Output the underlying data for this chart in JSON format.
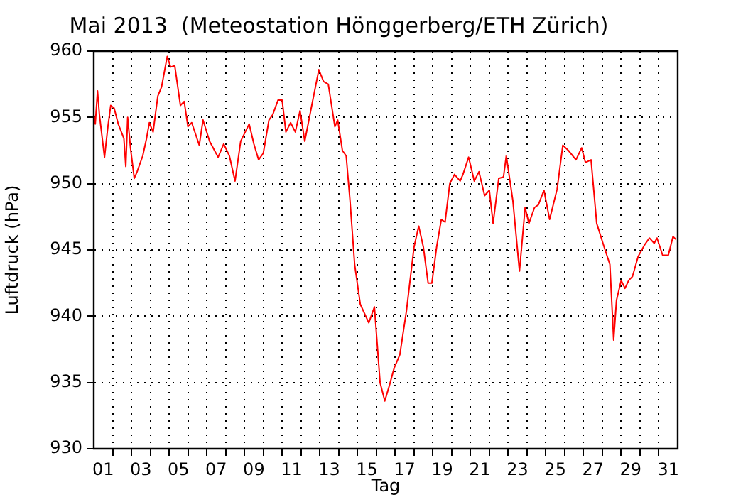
{
  "chart_data": {
    "type": "line",
    "title": "Mai 2013  (Meteostation Hönggerberg/ETH Zürich)",
    "xlabel": "Tag",
    "ylabel": "Luftdruck (hPa)",
    "x": [
      1.0,
      1.08,
      1.2,
      1.3,
      1.57,
      1.75,
      1.9,
      2.08,
      2.3,
      2.6,
      2.7,
      2.8,
      2.95,
      3.15,
      3.3,
      3.6,
      3.8,
      3.95,
      4.15,
      4.4,
      4.6,
      4.9,
      5.08,
      5.3,
      5.6,
      5.8,
      6.0,
      6.2,
      6.6,
      6.8,
      7.15,
      7.6,
      7.9,
      8.2,
      8.5,
      8.8,
      9.25,
      9.5,
      9.75,
      10.0,
      10.3,
      10.5,
      10.78,
      11.0,
      11.2,
      11.45,
      11.7,
      11.95,
      12.2,
      12.6,
      12.95,
      13.2,
      13.45,
      13.8,
      13.95,
      14.2,
      14.4,
      14.6,
      14.85,
      15.15,
      15.6,
      15.9,
      16.2,
      16.45,
      16.7,
      16.95,
      17.25,
      17.6,
      18.0,
      18.25,
      18.5,
      18.75,
      18.95,
      19.2,
      19.45,
      19.65,
      19.9,
      20.15,
      20.45,
      20.6,
      20.9,
      21.2,
      21.45,
      21.75,
      22.0,
      22.2,
      22.5,
      22.75,
      22.9,
      23.25,
      23.6,
      23.9,
      24.1,
      24.4,
      24.6,
      24.9,
      25.2,
      25.6,
      25.9,
      26.2,
      26.6,
      26.9,
      27.1,
      27.4,
      27.7,
      28.1,
      28.4,
      28.6,
      28.75,
      29.0,
      29.2,
      29.4,
      29.6,
      29.9,
      30.25,
      30.5,
      30.75,
      30.9,
      31.2,
      31.5,
      31.75,
      31.9
    ],
    "series": [
      {
        "color": "#ff0000",
        "values": [
          955.2,
          954.5,
          957,
          955.2,
          952,
          954.3,
          955.9,
          955.7,
          954.5,
          953.4,
          951.3,
          955,
          952.7,
          950.4,
          950.9,
          952.1,
          953.4,
          954.6,
          953.9,
          956.6,
          957.3,
          959.6,
          958.8,
          958.9,
          955.9,
          956.2,
          954.3,
          954.6,
          952.9,
          954.8,
          953.2,
          952,
          953,
          952.1,
          950.2,
          953.2,
          954.5,
          953,
          951.8,
          952.3,
          954.8,
          955.2,
          956.3,
          956.3,
          953.9,
          954.6,
          953.9,
          955.5,
          953.2,
          956.1,
          958.6,
          957.7,
          957.5,
          954.3,
          954.8,
          952.5,
          952.1,
          948.8,
          943.9,
          940.9,
          939.5,
          940.7,
          935,
          933.6,
          934.8,
          936.1,
          937.1,
          940.4,
          945.2,
          946.8,
          945.2,
          942.5,
          942.5,
          945.2,
          947.3,
          947.1,
          950,
          950.7,
          950.2,
          950.7,
          952,
          950.2,
          950.9,
          949.1,
          949.5,
          947,
          950.4,
          950.5,
          952.1,
          948.7,
          943.4,
          948.2,
          947,
          948.2,
          948.4,
          949.5,
          947.3,
          949.6,
          952.9,
          952.5,
          951.8,
          952.7,
          951.6,
          951.8,
          947,
          945.2,
          943.9,
          938.2,
          941.2,
          942.7,
          942.1,
          942.7,
          943,
          944.5,
          945.4,
          945.9,
          945.5,
          945.9,
          944.6,
          944.6,
          946,
          945.8
        ]
      }
    ],
    "xlim": [
      1,
      32
    ],
    "xticks": [
      {
        "value": 1.5,
        "label": "01"
      },
      {
        "value": 2,
        "label": null
      },
      {
        "value": 3,
        "label": null
      },
      {
        "value": 3.5,
        "label": "03"
      },
      {
        "value": 4,
        "label": null
      },
      {
        "value": 5,
        "label": null
      },
      {
        "value": 5.5,
        "label": "05"
      },
      {
        "value": 6,
        "label": null
      },
      {
        "value": 7,
        "label": null
      },
      {
        "value": 7.5,
        "label": "07"
      },
      {
        "value": 8,
        "label": null
      },
      {
        "value": 9,
        "label": null
      },
      {
        "value": 9.5,
        "label": "09"
      },
      {
        "value": 10,
        "label": null
      },
      {
        "value": 11,
        "label": null
      },
      {
        "value": 11.5,
        "label": "11"
      },
      {
        "value": 12,
        "label": null
      },
      {
        "value": 13,
        "label": null
      },
      {
        "value": 13.5,
        "label": "13"
      },
      {
        "value": 14,
        "label": null
      },
      {
        "value": 15,
        "label": null
      },
      {
        "value": 15.5,
        "label": "15"
      },
      {
        "value": 16,
        "label": null
      },
      {
        "value": 17,
        "label": null
      },
      {
        "value": 17.5,
        "label": "17"
      },
      {
        "value": 18,
        "label": null
      },
      {
        "value": 19,
        "label": null
      },
      {
        "value": 19.5,
        "label": "19"
      },
      {
        "value": 20,
        "label": null
      },
      {
        "value": 21,
        "label": null
      },
      {
        "value": 21.5,
        "label": "21"
      },
      {
        "value": 22,
        "label": null
      },
      {
        "value": 23,
        "label": null
      },
      {
        "value": 23.5,
        "label": "23"
      },
      {
        "value": 24,
        "label": null
      },
      {
        "value": 25,
        "label": null
      },
      {
        "value": 25.5,
        "label": "25"
      },
      {
        "value": 26,
        "label": null
      },
      {
        "value": 27,
        "label": null
      },
      {
        "value": 27.5,
        "label": "27"
      },
      {
        "value": 28,
        "label": null
      },
      {
        "value": 29,
        "label": null
      },
      {
        "value": 29.5,
        "label": "29"
      },
      {
        "value": 30,
        "label": null
      },
      {
        "value": 31,
        "label": null
      },
      {
        "value": 31.5,
        "label": "31"
      }
    ],
    "ylim": [
      930,
      960
    ],
    "yticks": [
      930,
      935,
      940,
      945,
      950,
      955,
      960
    ],
    "grid": true,
    "legend": false,
    "marker": "none",
    "line_style": "solid"
  }
}
